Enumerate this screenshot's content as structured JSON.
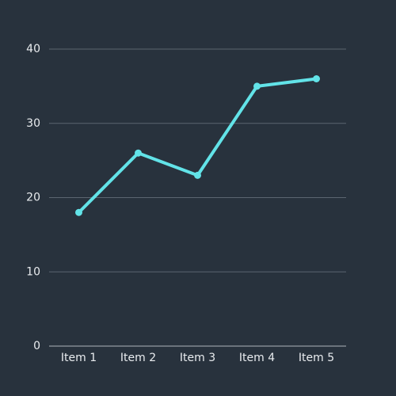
{
  "colors": {
    "background": "#28323d",
    "series": "#62e3e8",
    "grid": "#5b6570",
    "text": "#e9ecef"
  },
  "chart_data": {
    "type": "line",
    "title": "",
    "xlabel": "",
    "ylabel": "",
    "categories": [
      "Item 1",
      "Item 2",
      "Item 3",
      "Item 4",
      "Item 5"
    ],
    "series": [
      {
        "values": [
          18,
          26,
          23,
          35,
          36
        ]
      }
    ],
    "ylim": [
      0,
      40
    ],
    "yticks": [
      0,
      10,
      20,
      30,
      40
    ],
    "grid": true,
    "markers": true,
    "legend": "none"
  }
}
